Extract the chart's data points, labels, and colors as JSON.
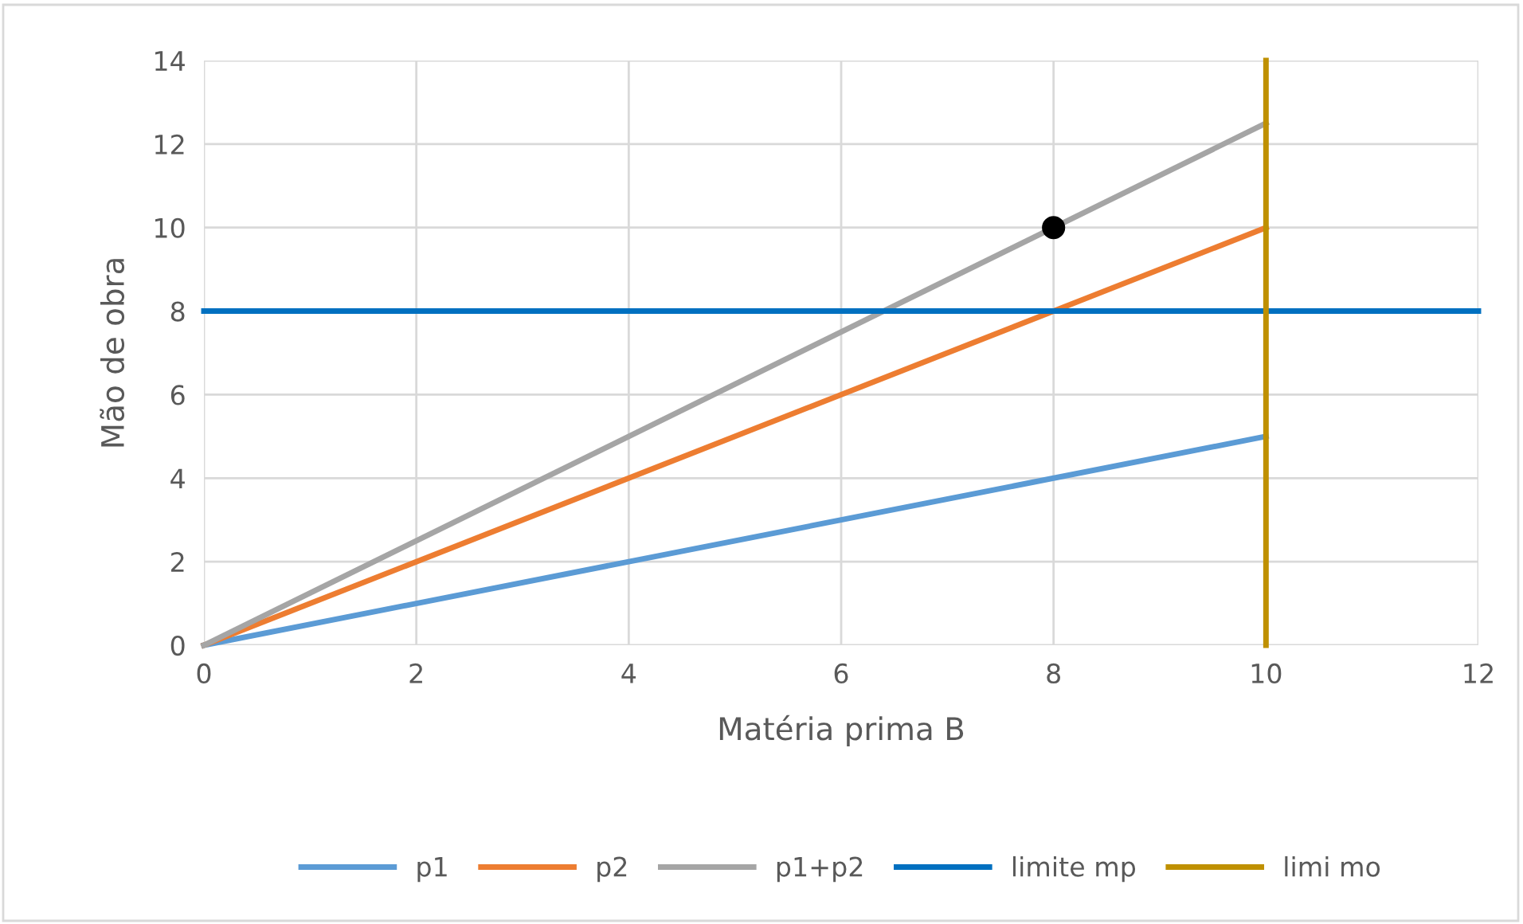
{
  "chart_data": {
    "type": "line",
    "xlabel": "Matéria prima B",
    "ylabel": "Mão de obra",
    "xlim": [
      0,
      12
    ],
    "ylim": [
      0,
      14
    ],
    "xticks": [
      0,
      2,
      4,
      6,
      8,
      10,
      12
    ],
    "yticks": [
      0,
      2,
      4,
      6,
      8,
      10,
      12,
      14
    ],
    "grid": true,
    "legend": "bottom",
    "series": [
      {
        "name": "p1",
        "color": "#5b9bd5",
        "x": [
          0,
          10
        ],
        "values": [
          0,
          5
        ]
      },
      {
        "name": "p2",
        "color": "#ed7d31",
        "x": [
          0,
          10
        ],
        "values": [
          0,
          10
        ]
      },
      {
        "name": "p1+p2",
        "color": "#a5a5a5",
        "x": [
          0,
          10
        ],
        "values": [
          0,
          12.5
        ]
      },
      {
        "name": "limite mp",
        "color": "#0070c0",
        "x": [
          0,
          12
        ],
        "values": [
          8,
          8
        ]
      },
      {
        "name": "limi mo",
        "color": "#bf9000",
        "x": [
          10,
          10
        ],
        "values": [
          0,
          14
        ]
      },
      {
        "type": "scatter",
        "color": "#000000",
        "x": [
          8
        ],
        "values": [
          10
        ],
        "marker": "circle"
      }
    ]
  }
}
